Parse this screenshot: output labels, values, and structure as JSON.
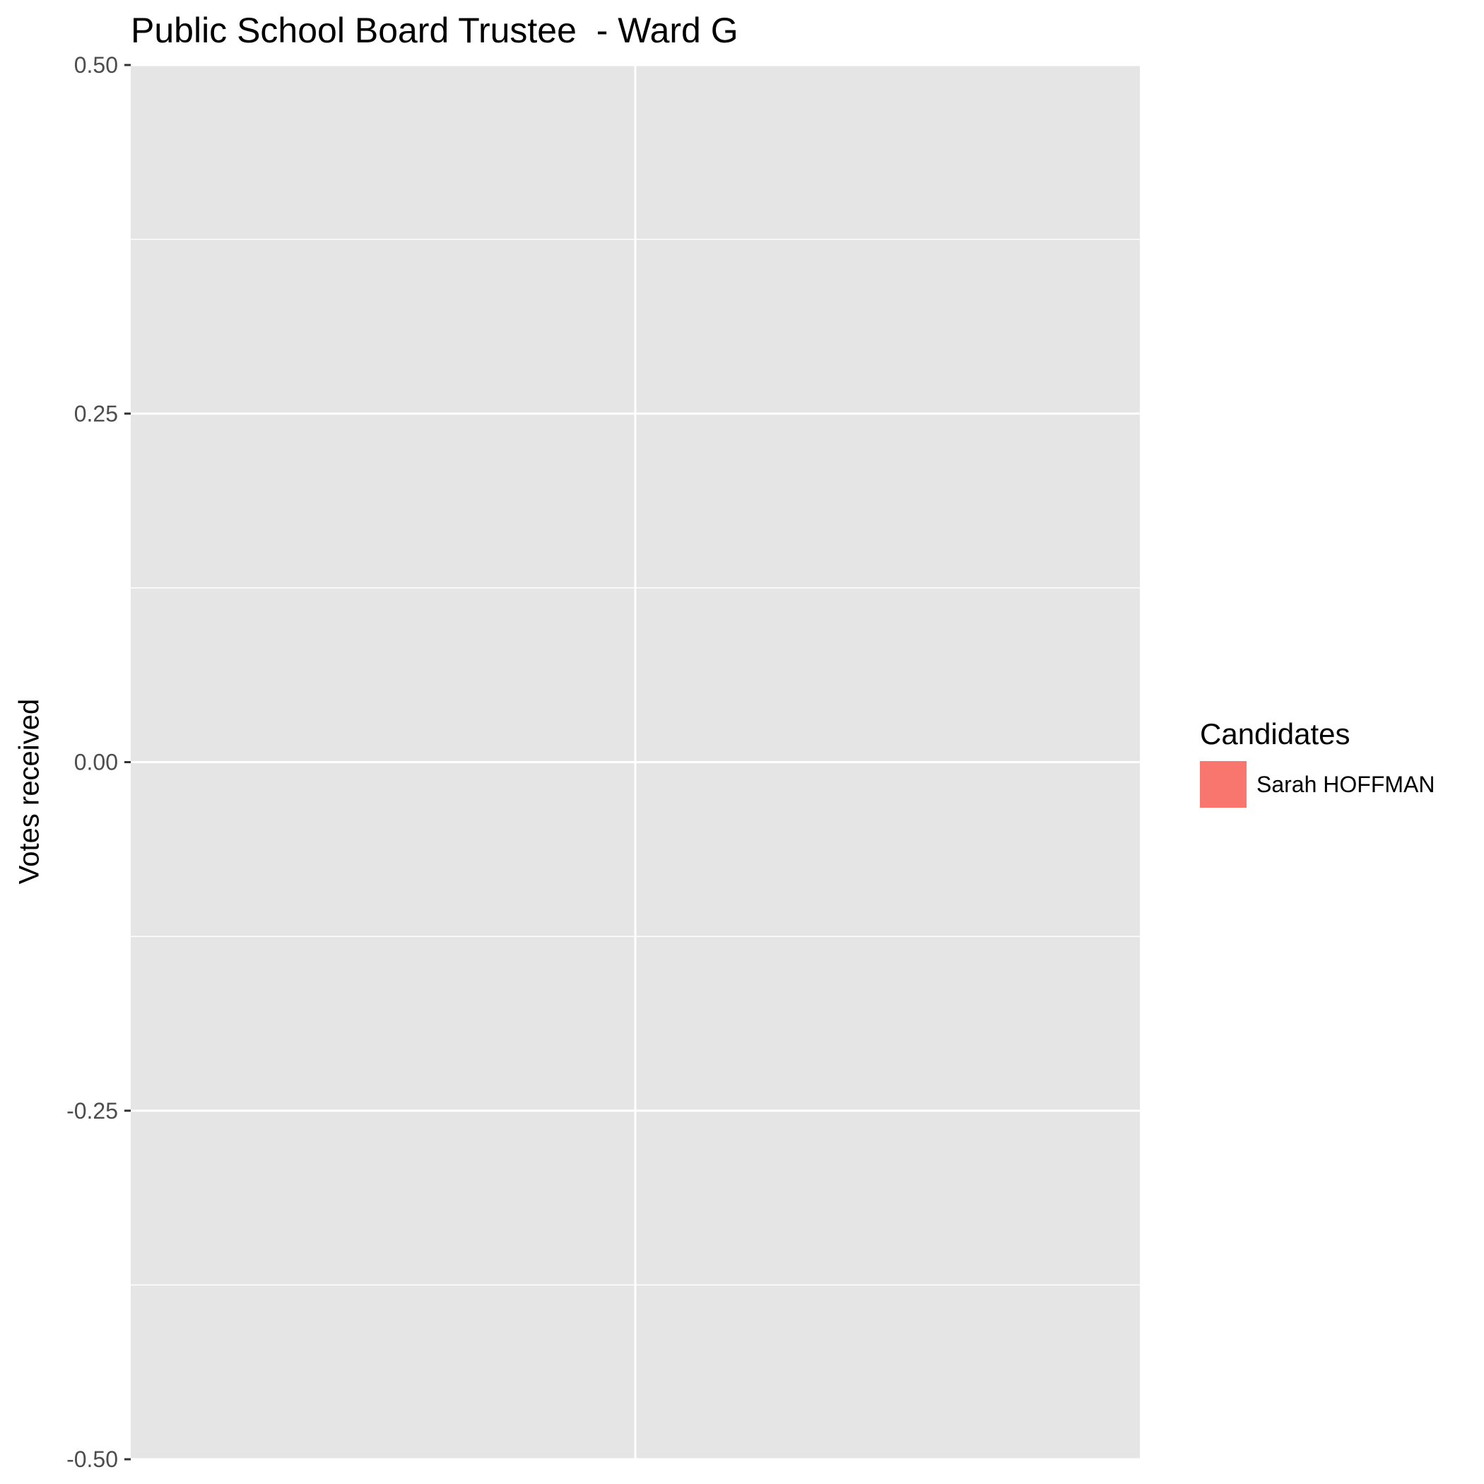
{
  "chart_data": {
    "type": "bar",
    "title": "Public School Board Trustee  - Ward G",
    "xlabel": "",
    "ylabel": "Votes received",
    "ylim": [
      -0.5,
      0.5
    ],
    "yticks": [
      "0.50",
      "0.25",
      "0.00",
      "-0.25",
      "-0.50"
    ],
    "ytick_values": [
      0.5,
      0.25,
      0,
      -0.25,
      -0.5
    ],
    "categories": [],
    "series": [
      {
        "name": "Sarah HOFFMAN",
        "values": []
      }
    ],
    "legend": {
      "title": "Candidates",
      "placement": "right"
    },
    "grid": true,
    "colors": {
      "panel": "#e5e5e5",
      "grid": "#ffffff",
      "series": [
        "#f8766d"
      ]
    }
  }
}
